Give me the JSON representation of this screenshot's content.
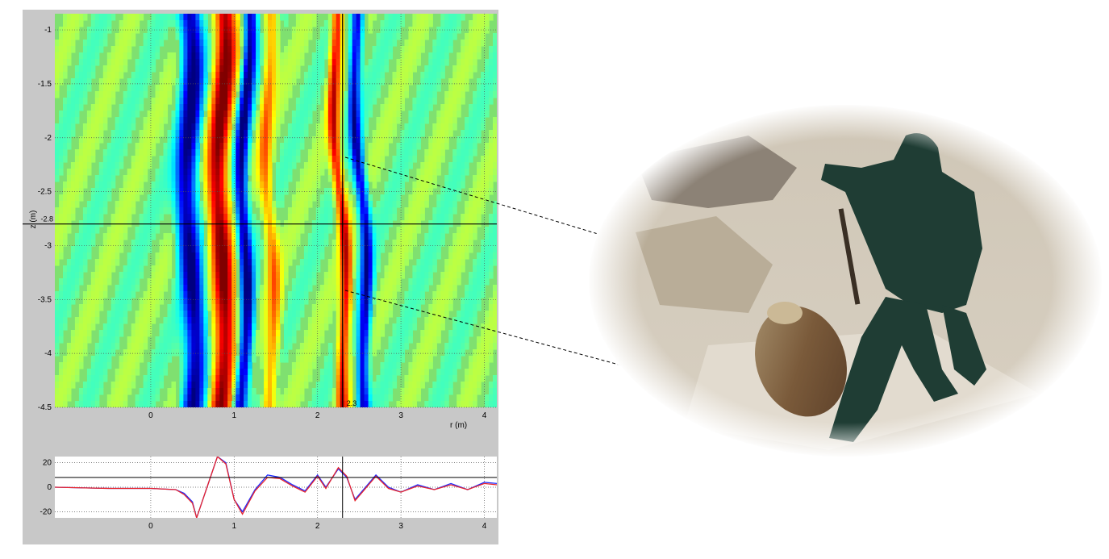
{
  "chart_data": [
    {
      "type": "heatmap",
      "title": "",
      "xlabel": "r (m)",
      "ylabel": "z (m)",
      "xlim": [
        -1.15,
        4.15
      ],
      "ylim": [
        -4.5,
        -0.85
      ],
      "x_ticks": [
        "0",
        "1",
        "2",
        "3",
        "4"
      ],
      "y_ticks": [
        "-1",
        "-1.5",
        "-2",
        "-2.5",
        "-3",
        "-3.5",
        "-4",
        "-4.5"
      ],
      "colormap": "jet",
      "grid": true,
      "crosshair": {
        "x": 2.3,
        "y": -2.8,
        "x_label": "2.3",
        "y_label": "-2.8"
      },
      "bands": [
        {
          "name": "blue-left",
          "polarity": -1,
          "top_r": 0.45,
          "bottom_r": 0.5,
          "width": 0.13
        },
        {
          "name": "red-main",
          "polarity": 1,
          "top_r": 0.85,
          "bottom_r": 0.85,
          "width": 0.13
        },
        {
          "name": "blue-second",
          "polarity": -1,
          "top_r": 1.15,
          "bottom_r": 1.1,
          "width": 0.08
        },
        {
          "name": "yellow-1",
          "polarity": 0.5,
          "top_r": 1.4,
          "bottom_r": 1.45,
          "width": 0.08
        },
        {
          "name": "orange-target",
          "polarity": 0.8,
          "top_r": 2.2,
          "bottom_r": 2.35,
          "width": 0.07
        },
        {
          "name": "blue-target",
          "polarity": -0.9,
          "top_r": 2.45,
          "bottom_r": 2.6,
          "width": 0.07
        }
      ]
    },
    {
      "type": "line",
      "xlim": [
        -1.15,
        4.15
      ],
      "ylim": [
        -25,
        25
      ],
      "x_ticks": [
        "0",
        "1",
        "2",
        "3",
        "4"
      ],
      "y_ticks": [
        "20",
        "0",
        "-20"
      ],
      "hline": 8,
      "vline": 2.3,
      "grid": true,
      "series": [
        {
          "color": "#1e2cff",
          "x": [
            -1.15,
            -0.5,
            0,
            0.3,
            0.4,
            0.5,
            0.55,
            0.8,
            0.9,
            1.0,
            1.1,
            1.25,
            1.4,
            1.55,
            1.7,
            1.85,
            2.0,
            2.1,
            2.25,
            2.35,
            2.45,
            2.55,
            2.7,
            2.85,
            3.0,
            3.2,
            3.4,
            3.6,
            3.8,
            4.0,
            4.15
          ],
          "y": [
            0,
            -1,
            -1,
            -2,
            -5,
            -12,
            -25,
            25,
            20,
            -10,
            -20,
            -2,
            10,
            8,
            2,
            -3,
            10,
            0,
            15,
            8,
            -10,
            -2,
            10,
            0,
            -4,
            2,
            -2,
            3,
            -2,
            4,
            3
          ]
        },
        {
          "color": "#e8242c",
          "x": [
            -1.15,
            -0.5,
            0,
            0.3,
            0.4,
            0.5,
            0.55,
            0.8,
            0.9,
            1.0,
            1.1,
            1.25,
            1.4,
            1.55,
            1.7,
            1.85,
            2.0,
            2.1,
            2.25,
            2.35,
            2.45,
            2.55,
            2.7,
            2.85,
            3.0,
            3.2,
            3.4,
            3.6,
            3.8,
            4.0,
            4.15
          ],
          "y": [
            0,
            -1,
            -1,
            -2,
            -6,
            -13,
            -25,
            25,
            19,
            -10,
            -22,
            -3,
            8,
            7,
            1,
            -4,
            9,
            -1,
            16,
            9,
            -11,
            -3,
            9,
            -1,
            -4,
            1,
            -2,
            2,
            -2,
            3,
            2
          ]
        }
      ]
    }
  ],
  "colors": {
    "frame": "#c8c8c8",
    "crosshair": "#000000",
    "leader": "#000000"
  },
  "photo": {
    "subject": "person in green rain suit excavating an unexploded bomb in sandy soil"
  }
}
